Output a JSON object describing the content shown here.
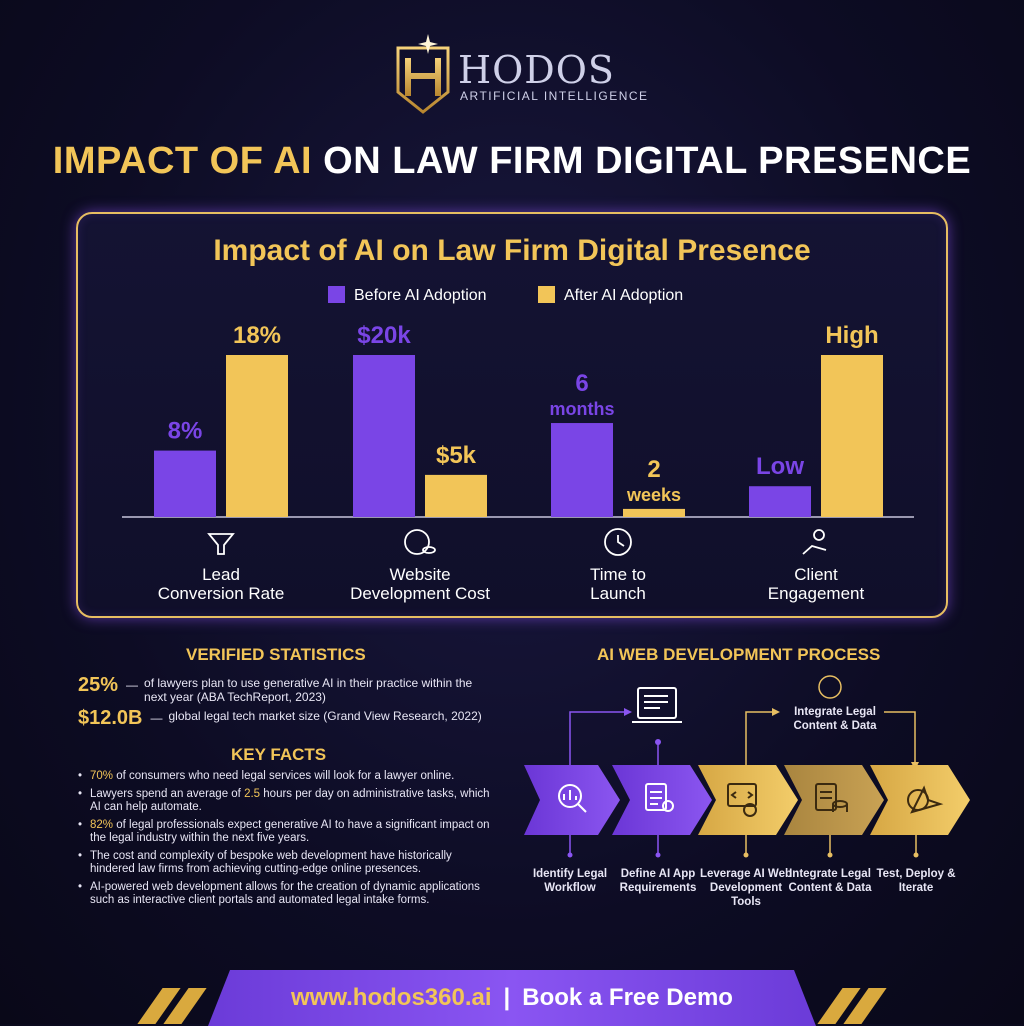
{
  "brand": {
    "name": "HODOS",
    "subtitle": "ARTIFICIAL INTELLIGENCE"
  },
  "headline": {
    "accent": "IMPACT OF AI",
    "rest": "ON LAW FIRM DIGITAL PRESENCE"
  },
  "colors": {
    "before": "#7a45e6",
    "after": "#f2c558",
    "accent_gold": "#f2c558",
    "purple": "#8a55f2",
    "background": "#0d0c24"
  },
  "chart_data": {
    "type": "bar",
    "title": "Impact of AI on Law Firm Digital Presence",
    "legend_position": "top-center",
    "grid": false,
    "categories": [
      {
        "line1": "Lead",
        "line2": "Conversion Rate",
        "icon": "funnel-icon"
      },
      {
        "line1": "Website",
        "line2": "Development Cost",
        "icon": "money-coins-icon"
      },
      {
        "line1": "Time to",
        "line2": "Launch",
        "icon": "clock-icon"
      },
      {
        "line1": "Client",
        "line2": "Engagement",
        "icon": "people-handshake-icon"
      }
    ],
    "series": [
      {
        "name": "Before AI Adoption",
        "labels": [
          "8%",
          "$20k",
          "6 months",
          "Low"
        ]
      },
      {
        "name": "After AI Adoption",
        "labels": [
          "18%",
          "$5k",
          "2 weeks",
          "High"
        ]
      }
    ],
    "relative_heights": [
      [
        0.41,
        1.0
      ],
      [
        1.0,
        0.26
      ],
      [
        0.58,
        0.05
      ],
      [
        0.19,
        1.0
      ]
    ]
  },
  "stats": {
    "title": "VERIFIED STATISTICS",
    "items": [
      {
        "value": "25%",
        "text": "of lawyers plan to use generative AI in their practice within the next year (ABA TechReport, 2023)"
      },
      {
        "value": "$12.0B",
        "text": "global legal tech market size (Grand View Research, 2022)"
      }
    ]
  },
  "facts": {
    "title": "KEY FACTS",
    "items": [
      {
        "hl": "70%",
        "text": " of consumers who need legal services will look for a lawyer online."
      },
      {
        "pre": "Lawyers spend an average of ",
        "hl": "2.5",
        "text": " hours per day on administrative tasks, which AI can help automate."
      },
      {
        "hl": "82%",
        "text": " of legal professionals expect generative AI to have a significant impact on the legal industry within the next five years."
      },
      {
        "text": "The cost and complexity of bespoke web development have historically hindered law firms from achieving cutting-edge online presences."
      },
      {
        "text": "AI-powered web development allows for the creation of dynamic applications such as interactive client portals and automated legal intake forms."
      }
    ]
  },
  "process": {
    "title": "AI WEB DEVELOPMENT PROCESS",
    "integrate_top": "Integrate Legal Content & Data",
    "steps": [
      {
        "label": "Identify Legal Workflow",
        "icon": "magnifier-chart-icon"
      },
      {
        "label": "Define AI App Requirements",
        "icon": "checklist-gear-icon"
      },
      {
        "label": "Leverage AI Web Development Tools",
        "icon": "code-brain-icon"
      },
      {
        "label": "Integrate Legal Content & Data",
        "icon": "document-database-icon"
      },
      {
        "label": "Test, Deploy & Iterate",
        "icon": "rocket-gear-icon"
      }
    ]
  },
  "footer": {
    "url": "www.hodos360.ai",
    "separator": "|",
    "cta": "Book a Free Demo"
  }
}
